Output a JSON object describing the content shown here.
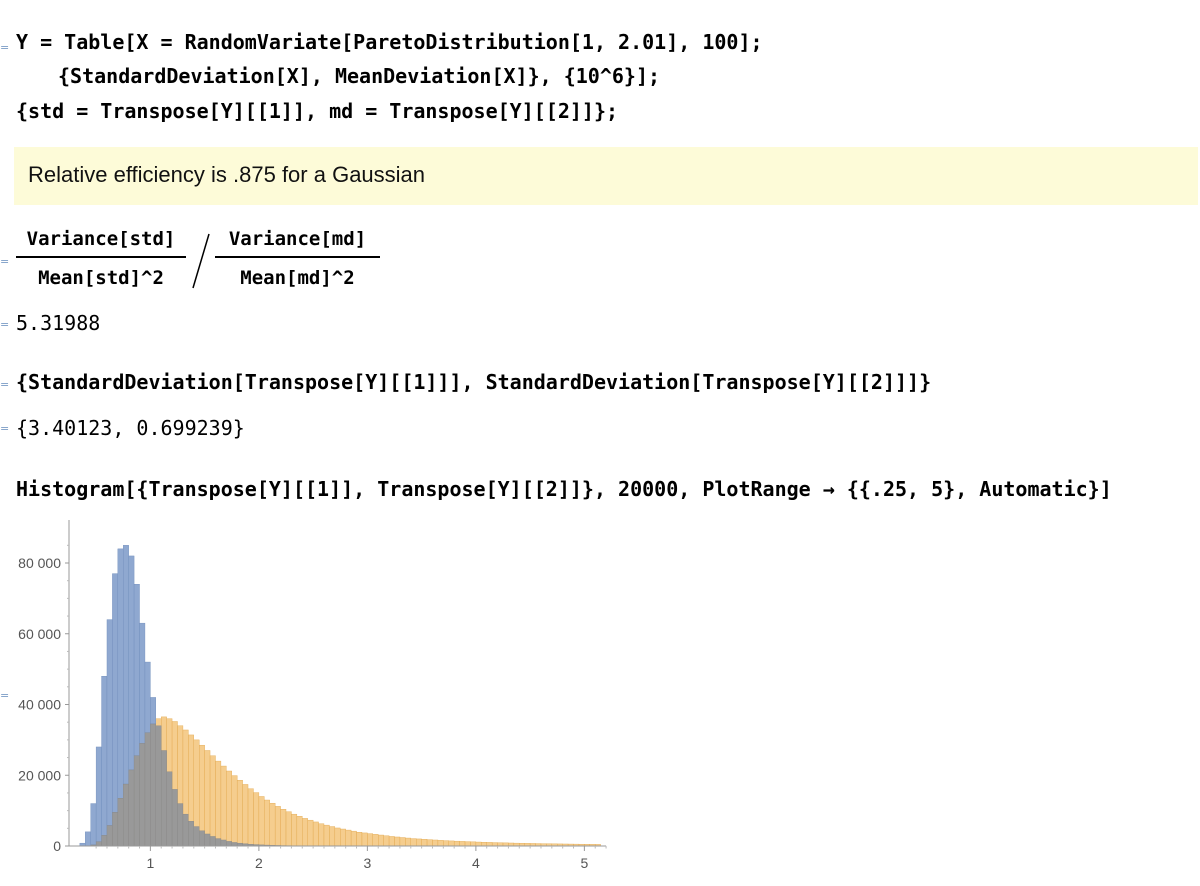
{
  "cells": {
    "input1": {
      "line1": "Y = Table[X = RandomVariate[ParetoDistribution[1, 2.01], 100];",
      "line2": "{StandardDeviation[X], MeanDeviation[X]}, {10^6}];",
      "line3": "{std = Transpose[Y][[1]], md = Transpose[Y][[2]]};"
    },
    "text1": "Relative efficiency is .875 for a Gaussian",
    "input2": {
      "num_left": "Variance[std]",
      "den_left": "Mean[std]^2",
      "num_right": "Variance[md]",
      "den_right": "Mean[md]^2"
    },
    "output2": "5.31988",
    "input3": "{StandardDeviation[Transpose[Y][[1]]], StandardDeviation[Transpose[Y][[2]]]}",
    "output3": "{3.40123, 0.699239}",
    "input4": "Histogram[{Transpose[Y][[1]], Transpose[Y][[2]]}, 20000, PlotRange → {{.25, 5}, Automatic}]"
  },
  "colors": {
    "series1": "#8fa8d0",
    "series2": "#f3c47a",
    "overlap": "#999999",
    "text_cell_bg": "#fdfbd8",
    "cell_bracket": "#7a9cc6"
  },
  "chart_data": {
    "type": "bar",
    "xlim": [
      0.25,
      5.2
    ],
    "ylim": [
      0,
      86000
    ],
    "xticks": [
      1,
      2,
      3,
      4,
      5
    ],
    "yticks": [
      0,
      20000,
      40000,
      60000,
      80000
    ],
    "xtick_labels": [
      "1",
      "2",
      "3",
      "4",
      "5"
    ],
    "ytick_labels": [
      "0",
      "20 000",
      "40 000",
      "60 000",
      "80 000"
    ],
    "bin_width": 0.05,
    "grid": false,
    "series": [
      {
        "x_start": 0.35,
        "values": [
          800,
          4000,
          12000,
          28000,
          48000,
          64000,
          77000,
          84000,
          85000,
          82000,
          74000,
          63000,
          52000,
          42000,
          34000,
          27000,
          21000,
          16000,
          12000,
          9000,
          7000,
          5500,
          4300,
          3400,
          2700,
          2100,
          1700,
          1300,
          1000,
          800,
          650,
          500,
          400,
          320,
          260,
          200,
          160,
          120,
          100,
          80,
          60,
          50,
          40
        ]
      },
      {
        "x_start": 0.45,
        "values": [
          300,
          1200,
          3000,
          5800,
          9500,
          13500,
          17500,
          21500,
          25500,
          29000,
          32000,
          34500,
          36000,
          36500,
          36000,
          35200,
          34000,
          32800,
          31400,
          30000,
          28500,
          27000,
          25500,
          24000,
          22600,
          21200,
          19900,
          18600,
          17400,
          16200,
          15100,
          14000,
          13000,
          12100,
          11200,
          10400,
          9700,
          9000,
          8400,
          7800,
          7300,
          6800,
          6300,
          5900,
          5500,
          5100,
          4800,
          4500,
          4200,
          3900,
          3700,
          3500,
          3300,
          3100,
          2900,
          2700,
          2550,
          2400,
          2250,
          2100,
          2000,
          1900,
          1800,
          1700,
          1600,
          1520,
          1440,
          1370,
          1300,
          1240,
          1180,
          1120,
          1070,
          1020,
          970,
          930,
          890,
          850,
          810,
          780,
          750,
          720,
          690,
          660,
          630,
          610,
          590,
          570,
          550,
          530,
          510,
          490,
          470,
          450
        ]
      }
    ]
  }
}
